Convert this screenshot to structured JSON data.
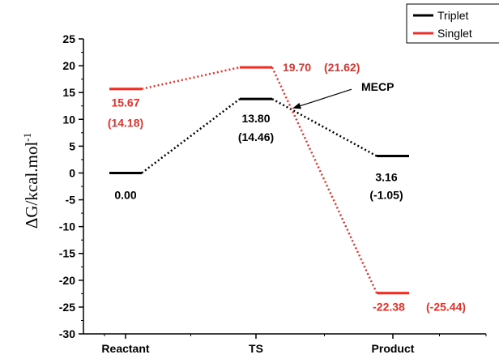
{
  "chart_data": {
    "type": "line",
    "categories": [
      "Reactant",
      "TS",
      "Product"
    ],
    "ylabel_main": "ΔG/kcal.mol",
    "ylabel_sup": "-1",
    "ylim": [
      -30,
      25
    ],
    "yticks": [
      -30,
      -25,
      -20,
      -15,
      -10,
      -5,
      0,
      5,
      10,
      15,
      20,
      25
    ],
    "series": [
      {
        "name": "Triplet",
        "color": "#000000",
        "values": [
          0.0,
          13.8,
          3.16
        ],
        "labels": [
          "0.00",
          "13.80",
          "3.16"
        ],
        "alt_labels": [
          "",
          "(14.46)",
          "(-1.05)"
        ]
      },
      {
        "name": "Singlet",
        "color": "#e8302a",
        "values": [
          15.67,
          19.7,
          -22.38
        ],
        "labels": [
          "15.67",
          "19.70",
          "-22.38"
        ],
        "alt_labels": [
          "(14.18)",
          "(21.62)",
          "(-25.44)"
        ]
      }
    ],
    "annotation": {
      "text": "MECP",
      "x": 1.25,
      "y": 11.8
    },
    "legend_position": "top-right"
  }
}
